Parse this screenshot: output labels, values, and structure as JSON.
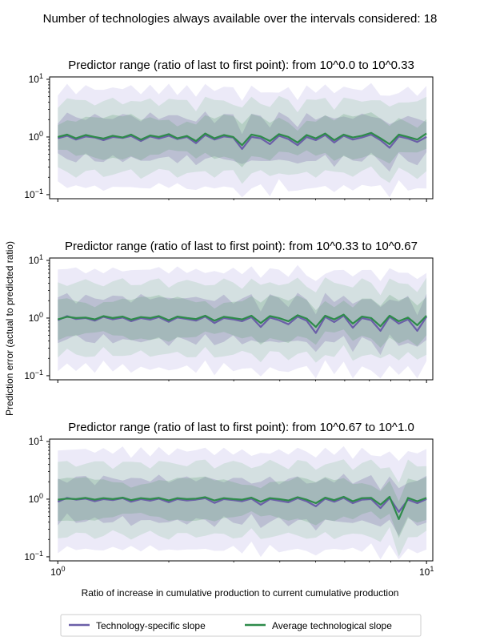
{
  "suptitle": "Number of technologies always available over the intervals considered: 18",
  "ylabel": "Prediction error (actual to predicted ratio)",
  "xlabel": "Ratio of increase in cumulative production to current cumulative production",
  "legend": {
    "items": [
      {
        "label": "Technology-specific slope",
        "color": "#6b5fa8"
      },
      {
        "label": "Average technological slope",
        "color": "#2e8b4a"
      }
    ]
  },
  "colors": {
    "tech": "#6b5fa8",
    "avg": "#2e8b4a",
    "tech_band": "#b9b2e6",
    "avg_band": "#a9cdb8"
  },
  "chart_data": [
    {
      "type": "line",
      "title": "Predictor range (ratio of last to first point): from 10^0.0 to 10^0.33",
      "xscale": "log",
      "yscale": "log",
      "xlim": [
        0.95,
        10.4
      ],
      "ylim": [
        0.085,
        11
      ],
      "yticks": [
        {
          "v": 0.1,
          "b": "10",
          "e": "−1"
        },
        {
          "v": 1,
          "b": "10",
          "e": "0"
        },
        {
          "v": 10,
          "b": "10",
          "e": "1"
        }
      ],
      "xticks": [],
      "x": [
        1.0,
        1.06,
        1.12,
        1.19,
        1.26,
        1.33,
        1.41,
        1.5,
        1.58,
        1.68,
        1.78,
        1.88,
        2.0,
        2.11,
        2.24,
        2.37,
        2.51,
        2.66,
        2.82,
        2.99,
        3.16,
        3.35,
        3.55,
        3.76,
        3.98,
        4.22,
        4.47,
        4.73,
        5.01,
        5.31,
        5.62,
        5.96,
        6.31,
        6.68,
        7.08,
        7.5,
        7.94,
        8.41,
        8.91,
        9.44,
        10.0
      ],
      "series": [
        {
          "name": "Technology-specific slope",
          "values": [
            0.95,
            1.05,
            0.9,
            1.02,
            0.98,
            0.88,
            1.0,
            0.96,
            1.04,
            0.85,
            1.02,
            0.94,
            1.05,
            0.92,
            1.0,
            0.78,
            1.08,
            0.9,
            1.02,
            0.98,
            0.62,
            1.0,
            0.95,
            0.75,
            1.05,
            0.92,
            0.72,
            1.0,
            0.88,
            1.08,
            0.8,
            1.05,
            0.9,
            0.98,
            1.1,
            0.88,
            0.65,
            1.02,
            0.94,
            0.82,
            1.0
          ]
        },
        {
          "name": "Average technological slope",
          "values": [
            1.0,
            1.1,
            0.95,
            1.08,
            1.0,
            0.94,
            1.05,
            0.98,
            1.1,
            0.9,
            1.06,
            1.0,
            1.12,
            0.95,
            1.04,
            0.85,
            1.15,
            0.95,
            1.08,
            1.0,
            0.72,
            1.1,
            1.02,
            0.85,
            1.12,
            1.0,
            0.8,
            1.08,
            0.95,
            1.15,
            0.88,
            1.1,
            0.98,
            1.05,
            1.18,
            0.95,
            0.75,
            1.1,
            1.0,
            0.9,
            1.15
          ]
        }
      ]
    },
    {
      "type": "line",
      "title": "Predictor range (ratio of last to first point): from 10^0.33 to 10^0.67",
      "xscale": "log",
      "yscale": "log",
      "xlim": [
        0.95,
        10.4
      ],
      "ylim": [
        0.085,
        11
      ],
      "yticks": [
        {
          "v": 0.1,
          "b": "10",
          "e": "−1"
        },
        {
          "v": 1,
          "b": "10",
          "e": "0"
        },
        {
          "v": 10,
          "b": "10",
          "e": "1"
        }
      ],
      "xticks": [],
      "x": [
        1.0,
        1.06,
        1.12,
        1.19,
        1.26,
        1.33,
        1.41,
        1.5,
        1.58,
        1.68,
        1.78,
        1.88,
        2.0,
        2.11,
        2.24,
        2.37,
        2.51,
        2.66,
        2.82,
        2.99,
        3.16,
        3.35,
        3.55,
        3.76,
        3.98,
        4.22,
        4.47,
        4.73,
        5.01,
        5.31,
        5.62,
        5.96,
        6.31,
        6.68,
        7.08,
        7.5,
        7.94,
        8.41,
        8.91,
        9.44,
        10.0
      ],
      "series": [
        {
          "name": "Technology-specific slope",
          "values": [
            0.92,
            1.08,
            0.96,
            1.0,
            0.9,
            1.05,
            0.95,
            1.02,
            0.88,
            1.0,
            0.94,
            1.04,
            0.86,
            1.02,
            0.96,
            0.9,
            1.06,
            0.82,
            1.0,
            0.95,
            0.88,
            1.04,
            0.7,
            1.02,
            0.92,
            0.78,
            1.06,
            0.9,
            0.55,
            1.05,
            0.85,
            1.1,
            0.68,
            1.0,
            0.92,
            0.6,
            1.05,
            0.8,
            0.95,
            0.6,
            1.05
          ]
        },
        {
          "name": "Average technological slope",
          "values": [
            0.95,
            1.05,
            1.0,
            1.02,
            0.95,
            1.08,
            1.0,
            1.06,
            0.94,
            1.04,
            1.0,
            1.08,
            0.92,
            1.06,
            1.0,
            0.96,
            1.1,
            0.9,
            1.05,
            1.0,
            0.95,
            1.1,
            0.82,
            1.08,
            1.0,
            0.88,
            1.12,
            0.98,
            0.7,
            1.1,
            0.95,
            1.15,
            0.8,
            1.06,
            1.0,
            0.72,
            1.1,
            0.88,
            1.02,
            0.75,
            1.1
          ]
        }
      ]
    },
    {
      "type": "line",
      "title": "Predictor range (ratio of last to first point): from 10^0.67 to 10^1.0",
      "xscale": "log",
      "yscale": "log",
      "xlim": [
        0.95,
        10.4
      ],
      "ylim": [
        0.085,
        11
      ],
      "yticks": [
        {
          "v": 0.1,
          "b": "10",
          "e": "−1"
        },
        {
          "v": 1,
          "b": "10",
          "e": "0"
        },
        {
          "v": 10,
          "b": "10",
          "e": "1"
        }
      ],
      "xticks": [
        {
          "v": 1,
          "b": "10",
          "e": "0"
        },
        {
          "v": 10,
          "b": "10",
          "e": "1"
        }
      ],
      "x": [
        1.0,
        1.06,
        1.12,
        1.19,
        1.26,
        1.33,
        1.41,
        1.5,
        1.58,
        1.68,
        1.78,
        1.88,
        2.0,
        2.11,
        2.24,
        2.37,
        2.51,
        2.66,
        2.82,
        2.99,
        3.16,
        3.35,
        3.55,
        3.76,
        3.98,
        4.22,
        4.47,
        4.73,
        5.01,
        5.31,
        5.62,
        5.96,
        6.31,
        6.68,
        7.08,
        7.5,
        7.94,
        8.41,
        8.91,
        9.44,
        10.0
      ],
      "series": [
        {
          "name": "Technology-specific slope",
          "values": [
            0.9,
            1.05,
            0.98,
            1.02,
            0.92,
            1.0,
            0.96,
            1.04,
            0.9,
            1.0,
            0.94,
            1.02,
            0.88,
            1.0,
            0.95,
            0.98,
            1.04,
            0.86,
            1.0,
            0.96,
            0.92,
            1.02,
            0.8,
            1.0,
            0.94,
            0.88,
            1.04,
            0.92,
            0.75,
            1.02,
            0.9,
            1.05,
            0.85,
            0.98,
            1.0,
            0.7,
            1.05,
            0.6,
            0.98,
            0.85,
            1.0
          ]
        },
        {
          "name": "Average technological slope",
          "values": [
            0.98,
            1.02,
            1.0,
            1.05,
            0.98,
            1.04,
            1.0,
            1.06,
            0.96,
            1.04,
            1.0,
            1.05,
            0.95,
            1.04,
            1.0,
            1.02,
            1.08,
            0.95,
            1.04,
            1.0,
            0.98,
            1.06,
            0.9,
            1.04,
            1.0,
            0.95,
            1.08,
            0.98,
            0.85,
            1.06,
            0.96,
            1.1,
            0.92,
            1.04,
            1.05,
            0.8,
            1.1,
            0.45,
            1.05,
            0.92,
            1.05
          ]
        }
      ]
    }
  ]
}
